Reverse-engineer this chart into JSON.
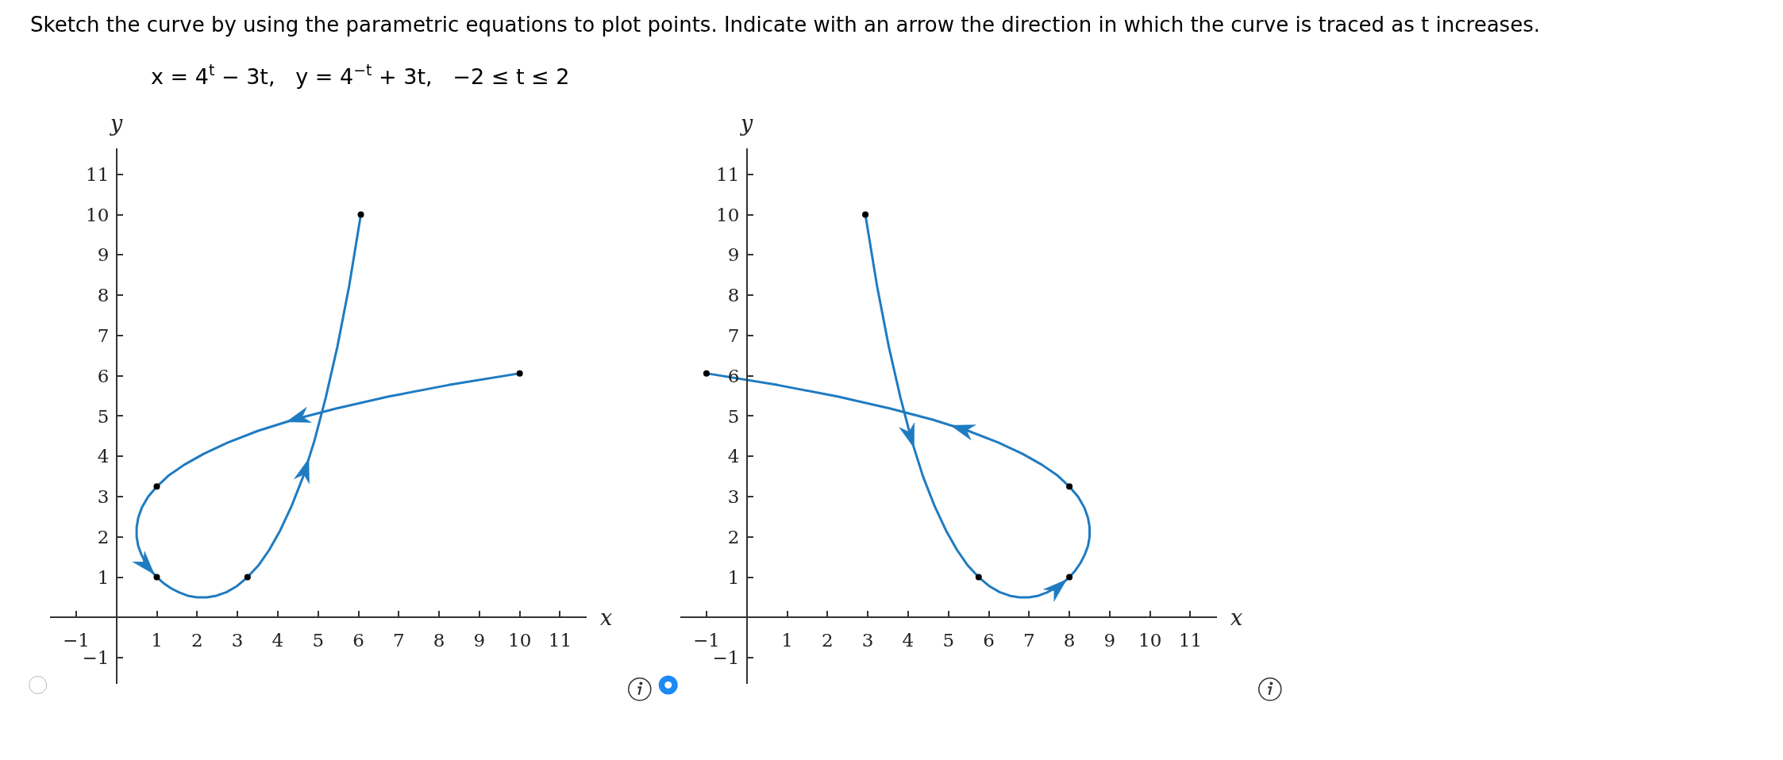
{
  "chart_data": [
    {
      "type": "line",
      "title": "Sketch the curve by using the parametric equations to plot points. Indicate with an arrow the direction in which the curve is traced as t increases.",
      "subtitle": "x = 4$^{t}$ − 3t,   y = 4$^{−t}$ + 3t,   −2 ≤ t ≤ 2",
      "xlabel": "x",
      "ylabel": "y",
      "xlim": [
        -1.65,
        11.65
      ],
      "ylim": [
        -1.65,
        11.65
      ],
      "xticks": [
        -1,
        1,
        2,
        3,
        4,
        5,
        6,
        7,
        8,
        9,
        10,
        11
      ],
      "yticks": [
        -1,
        1,
        2,
        3,
        4,
        5,
        6,
        7,
        8,
        9,
        10,
        11
      ],
      "series": [
        {
          "color": "#1f7bc1",
          "x": [
            10,
            8.23,
            6.73,
            5.46,
            4.39,
            3.5,
            2.76,
            2.16,
            1.68,
            1.29,
            1,
            0.78,
            0.63,
            0.54,
            0.5,
            0.5,
            0.54,
            0.62,
            0.72,
            0.85,
            1,
            1.17,
            1.36,
            1.56,
            1.77,
            2,
            2.24,
            2.48,
            2.73,
            2.99,
            3.25,
            3.52,
            3.79,
            4.06,
            4.34,
            4.63,
            4.91,
            5.19,
            5.48,
            5.77,
            6.06
          ],
          "values": [
            6.06,
            5.77,
            5.48,
            5.19,
            4.91,
            4.63,
            4.34,
            4.06,
            3.79,
            3.52,
            3.25,
            2.99,
            2.73,
            2.48,
            2.24,
            2,
            1.77,
            1.56,
            1.36,
            1.17,
            1,
            0.85,
            0.72,
            0.62,
            0.54,
            0.5,
            0.5,
            0.54,
            0.63,
            0.78,
            1,
            1.29,
            1.68,
            2.16,
            2.76,
            3.5,
            4.39,
            5.46,
            6.73,
            8.23,
            10
          ]
        },
        {
          "type": "scatter",
          "color": "#000000",
          "marker": "circle",
          "x": [
            6.06,
            3.25,
            1,
            1,
            10
          ],
          "values": [
            10,
            1,
            1,
            3.25,
            6.06
          ]
        }
      ]
    },
    {
      "type": "line",
      "xlabel": "x",
      "ylabel": "y",
      "xlim": [
        -1.65,
        11.65
      ],
      "ylim": [
        -1.65,
        11.65
      ],
      "xticks": [
        -1,
        1,
        2,
        3,
        4,
        5,
        6,
        7,
        8,
        9,
        10,
        11
      ],
      "yticks": [
        -1,
        1,
        2,
        3,
        4,
        5,
        6,
        7,
        8,
        9,
        10,
        11
      ],
      "series": [
        {
          "color": "#1f7bc1",
          "x": [
            2.94,
            3.23,
            3.52,
            3.81,
            4.09,
            4.37,
            4.66,
            4.94,
            5.21,
            5.48,
            5.75,
            6.01,
            6.27,
            6.52,
            6.76,
            7,
            7.23,
            7.44,
            7.64,
            7.83,
            8,
            8.15,
            8.28,
            8.38,
            8.46,
            8.5,
            8.5,
            8.46,
            8.37,
            8.22,
            8,
            7.71,
            7.32,
            6.84,
            6.24,
            5.5,
            4.61,
            3.54,
            2.27,
            0.77,
            -1
          ],
          "values": [
            10,
            8.23,
            6.73,
            5.46,
            4.39,
            3.5,
            2.76,
            2.16,
            1.68,
            1.29,
            1,
            0.78,
            0.63,
            0.54,
            0.5,
            0.5,
            0.54,
            0.62,
            0.72,
            0.85,
            1,
            1.17,
            1.36,
            1.56,
            1.77,
            2,
            2.24,
            2.48,
            2.73,
            2.99,
            3.25,
            3.52,
            3.79,
            4.06,
            4.34,
            4.63,
            4.91,
            5.19,
            5.48,
            5.77,
            6.06
          ]
        },
        {
          "type": "scatter",
          "color": "#000000",
          "marker": "circle",
          "x": [
            2.94,
            -1,
            5.75,
            8,
            8
          ],
          "values": [
            10,
            6.06,
            1,
            1,
            3.25
          ]
        }
      ]
    }
  ]
}
